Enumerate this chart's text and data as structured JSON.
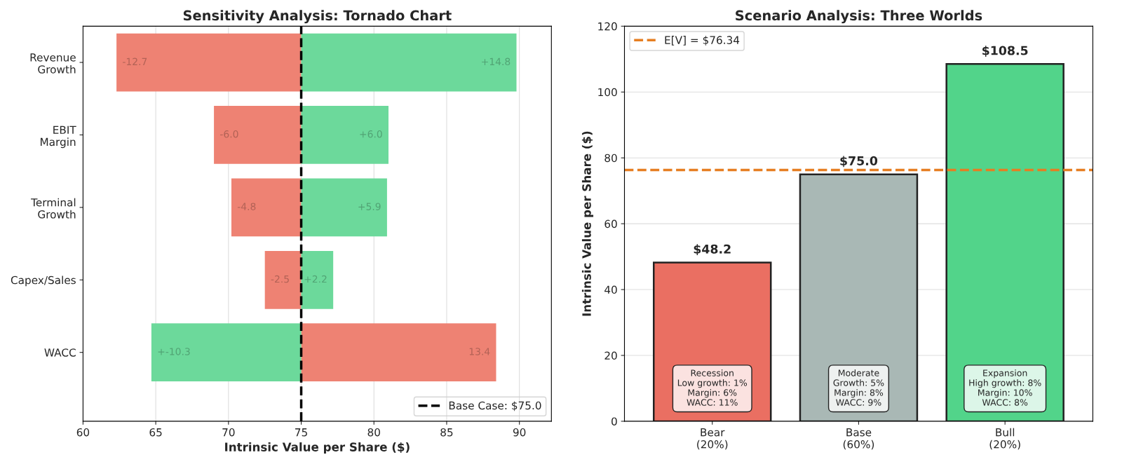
{
  "chart_data": [
    {
      "type": "bar",
      "orientation": "horizontal",
      "title": "Sensitivity Analysis: Tornado Chart",
      "xlabel": "Intrinsic Value per Share ($)",
      "categories": [
        "Revenue\nGrowth",
        "EBIT\nMargin",
        "Terminal\nGrowth",
        "Capex/Sales",
        "WACC"
      ],
      "series": [
        {
          "colors": [
            "#ee8273",
            "#ee8273",
            "#ee8273",
            "#ee8273",
            "#ee8273"
          ],
          "values": [
            -12.7,
            -6.0,
            -4.8,
            -2.5,
            13.4
          ],
          "base": [
            75,
            75,
            75,
            75,
            75
          ],
          "value_labels": [
            "-12.7",
            "-6.0",
            "-4.8",
            "-2.5",
            "13.4"
          ]
        },
        {
          "colors": [
            "#6cd99b",
            "#6cd99b",
            "#6cd99b",
            "#6cd99b",
            "#6cd99b"
          ],
          "values": [
            14.8,
            6.0,
            5.9,
            2.2,
            -10.3
          ],
          "base": [
            75,
            75,
            75,
            75,
            75
          ],
          "value_labels": [
            "+14.8",
            "+6.0",
            "+5.9",
            "+2.2",
            "+-10.3"
          ]
        }
      ],
      "xlim": [
        60,
        92.2
      ],
      "xticks": [
        60,
        65,
        70,
        75,
        80,
        85,
        90
      ],
      "grid": "x",
      "legend": "bottom right",
      "ref_lines": [
        {
          "axis": "x",
          "value": 75,
          "label": "Base Case: $75.0",
          "color": "#000000",
          "line_style": "dashed"
        }
      ]
    },
    {
      "type": "bar",
      "title": "Scenario Analysis: Three Worlds",
      "ylabel": "Intrinsic Value per Share ($)",
      "categories": [
        "Bear\n(20%)",
        "Base\n(60%)",
        "Bull\n(20%)"
      ],
      "values": [
        48.2,
        75.0,
        108.5
      ],
      "colors": [
        "#ea6f62",
        "#a9b8b5",
        "#52d48a"
      ],
      "value_labels": [
        "$48.2",
        "$75.0",
        "$108.5"
      ],
      "ylim": [
        0,
        120
      ],
      "yticks": [
        0,
        20,
        40,
        60,
        80,
        100,
        120
      ],
      "grid": "y",
      "legend": "top left",
      "ref_lines": [
        {
          "axis": "y",
          "value": 76.34,
          "label": "E[V] = $76.34",
          "color": "#e67e22",
          "line_style": "dashed"
        }
      ],
      "annotations": [
        "Recession\nLow growth: 1%\nMargin: 6%\nWACC: 11%",
        "Moderate\nGrowth: 5%\nMargin: 8%\nWACC: 9%",
        "Expansion\nHigh growth: 8%\nMargin: 10%\nWACC: 8%"
      ]
    }
  ]
}
